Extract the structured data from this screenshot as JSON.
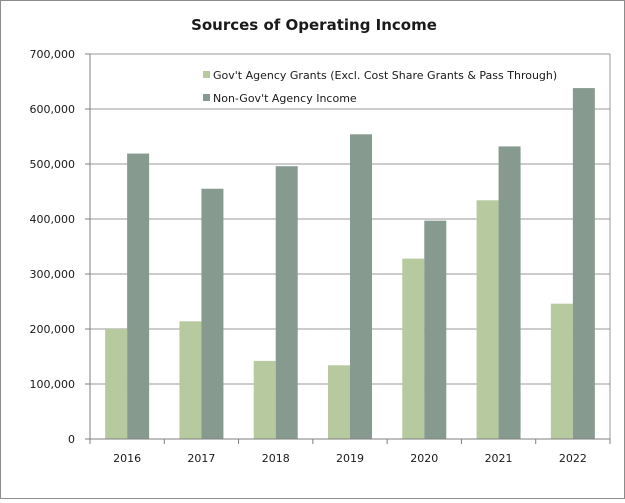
{
  "chart_data": {
    "type": "bar",
    "title": "Sources of Operating Income",
    "xlabel": "",
    "ylabel": "",
    "categories": [
      "2016",
      "2017",
      "2018",
      "2019",
      "2020",
      "2021",
      "2022"
    ],
    "series": [
      {
        "name": "Gov't Agency Grants (Excl. Cost Share Grants & Pass Through)",
        "color": "#b6c99f",
        "values": [
          200000,
          214000,
          142000,
          134000,
          328000,
          434000,
          246000
        ]
      },
      {
        "name": "Non-Gov't Agency Income",
        "color": "#879a8f",
        "values": [
          519000,
          455000,
          496000,
          554000,
          397000,
          532000,
          638000
        ]
      }
    ],
    "ylim": [
      0,
      700000
    ],
    "yticks": [
      0,
      100000,
      200000,
      300000,
      400000,
      500000,
      600000,
      700000
    ],
    "ytick_labels": [
      "0",
      "100,000",
      "200,000",
      "300,000",
      "400,000",
      "500,000",
      "600,000",
      "700,000"
    ],
    "grid": true,
    "legend_position": "top-inside"
  }
}
